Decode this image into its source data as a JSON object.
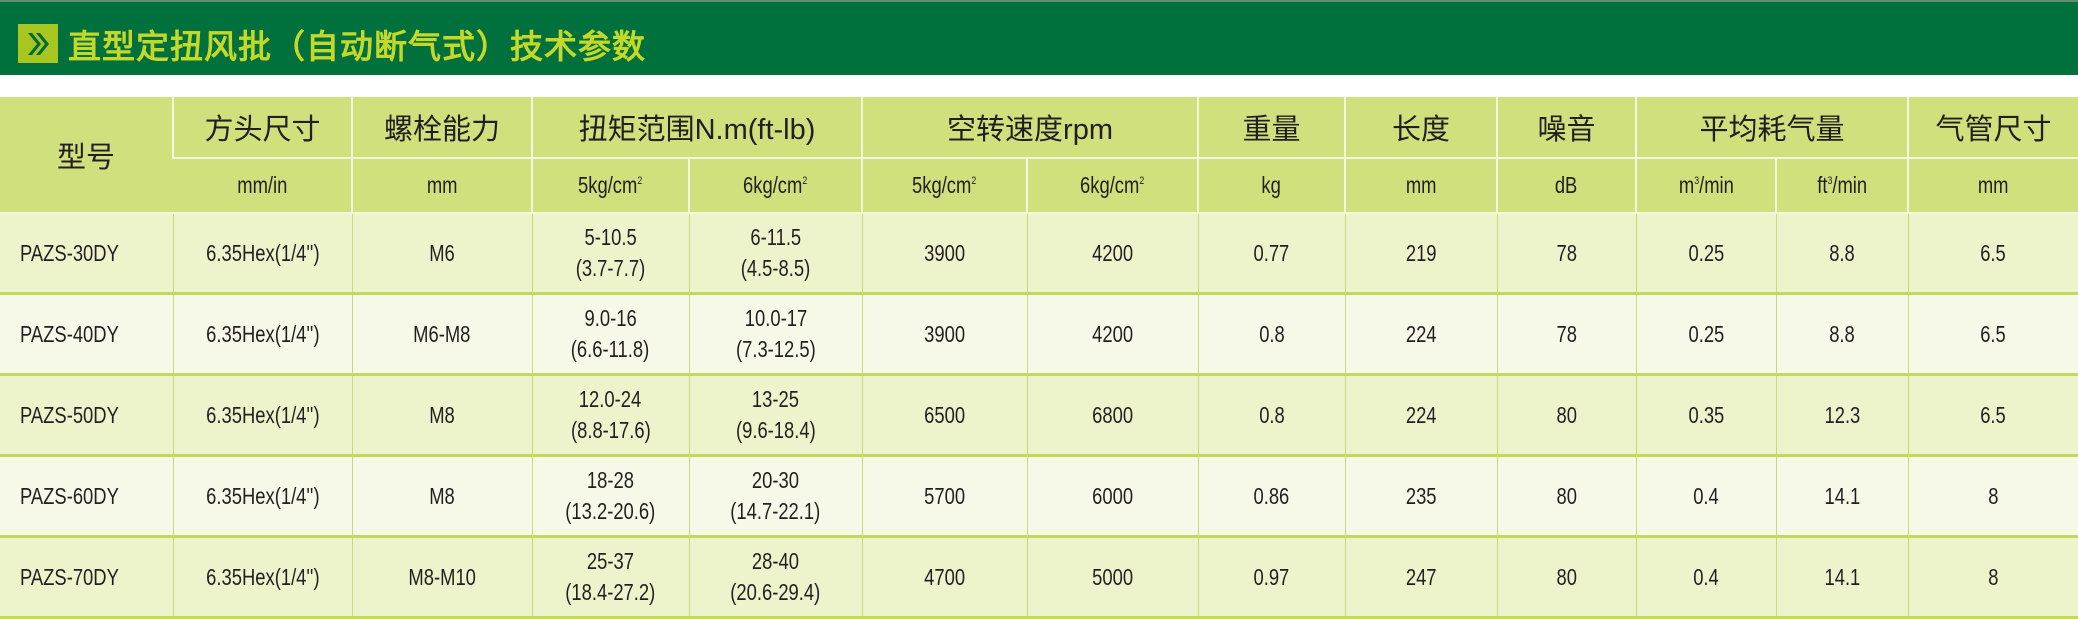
{
  "header": {
    "icon": "double-chevron-right-icon",
    "title": "直型定扭风批（自动断气式）技术参数"
  },
  "colors": {
    "title_bar": "#00703c",
    "title_text": "#c4d82a",
    "header_bg": "#d0e07d",
    "row_odd": "#edf4cc",
    "row_even": "#f6f9e7"
  },
  "table": {
    "columns": {
      "model": "型号",
      "square_drive": "方头尺寸",
      "bolt_capacity": "螺栓能力",
      "torque_range": "扭矩范围N.m(ft-lb)",
      "free_speed": "空转速度rpm",
      "weight": "重量",
      "length": "长度",
      "noise": "噪音",
      "air_consumption": "平均耗气量",
      "hose_size": "气管尺寸"
    },
    "units": {
      "square_drive": "mm/in",
      "bolt_capacity": "mm",
      "torque_5": "5kg/cm",
      "torque_6": "6kg/cm",
      "speed_5": "5kg/cm",
      "speed_6": "6kg/cm",
      "weight": "kg",
      "length": "mm",
      "noise": "dB",
      "air_m3_pre": "m",
      "air_m3_post": "/min",
      "air_ft3_pre": "ft",
      "air_ft3_post": "/min",
      "hose": "mm",
      "sup2": "2",
      "sup3": "3"
    },
    "rows": [
      {
        "model": "PAZS-30DY",
        "drive": "6.35Hex(1/4'')",
        "bolt": "M6",
        "t5a": "5-10.5",
        "t5b": "(3.7-7.7)",
        "t6a": "6-11.5",
        "t6b": "(4.5-8.5)",
        "s5": "3900",
        "s6": "4200",
        "weight": "0.77",
        "length": "219",
        "noise": "78",
        "m3": "0.25",
        "ft3": "8.8",
        "hose": "6.5"
      },
      {
        "model": "PAZS-40DY",
        "drive": "6.35Hex(1/4'')",
        "bolt": "M6-M8",
        "t5a": "9.0-16",
        "t5b": "(6.6-11.8)",
        "t6a": "10.0-17",
        "t6b": "(7.3-12.5)",
        "s5": "3900",
        "s6": "4200",
        "weight": "0.8",
        "length": "224",
        "noise": "78",
        "m3": "0.25",
        "ft3": "8.8",
        "hose": "6.5"
      },
      {
        "model": "PAZS-50DY",
        "drive": "6.35Hex(1/4'')",
        "bolt": "M8",
        "t5a": "12.0-24",
        "t5b": "(8.8-17.6)",
        "t6a": "13-25",
        "t6b": "(9.6-18.4)",
        "s5": "6500",
        "s6": "6800",
        "weight": "0.8",
        "length": "224",
        "noise": "80",
        "m3": "0.35",
        "ft3": "12.3",
        "hose": "6.5"
      },
      {
        "model": "PAZS-60DY",
        "drive": "6.35Hex(1/4'')",
        "bolt": "M8",
        "t5a": "18-28",
        "t5b": "(13.2-20.6)",
        "t6a": "20-30",
        "t6b": "(14.7-22.1)",
        "s5": "5700",
        "s6": "6000",
        "weight": "0.86",
        "length": "235",
        "noise": "80",
        "m3": "0.4",
        "ft3": "14.1",
        "hose": "8"
      },
      {
        "model": "PAZS-70DY",
        "drive": "6.35Hex(1/4'')",
        "bolt": "M8-M10",
        "t5a": "25-37",
        "t5b": "(18.4-27.2)",
        "t6a": "28-40",
        "t6b": "(20.6-29.4)",
        "s5": "4700",
        "s6": "5000",
        "weight": "0.97",
        "length": "247",
        "noise": "80",
        "m3": "0.4",
        "ft3": "14.1",
        "hose": "8"
      }
    ]
  }
}
